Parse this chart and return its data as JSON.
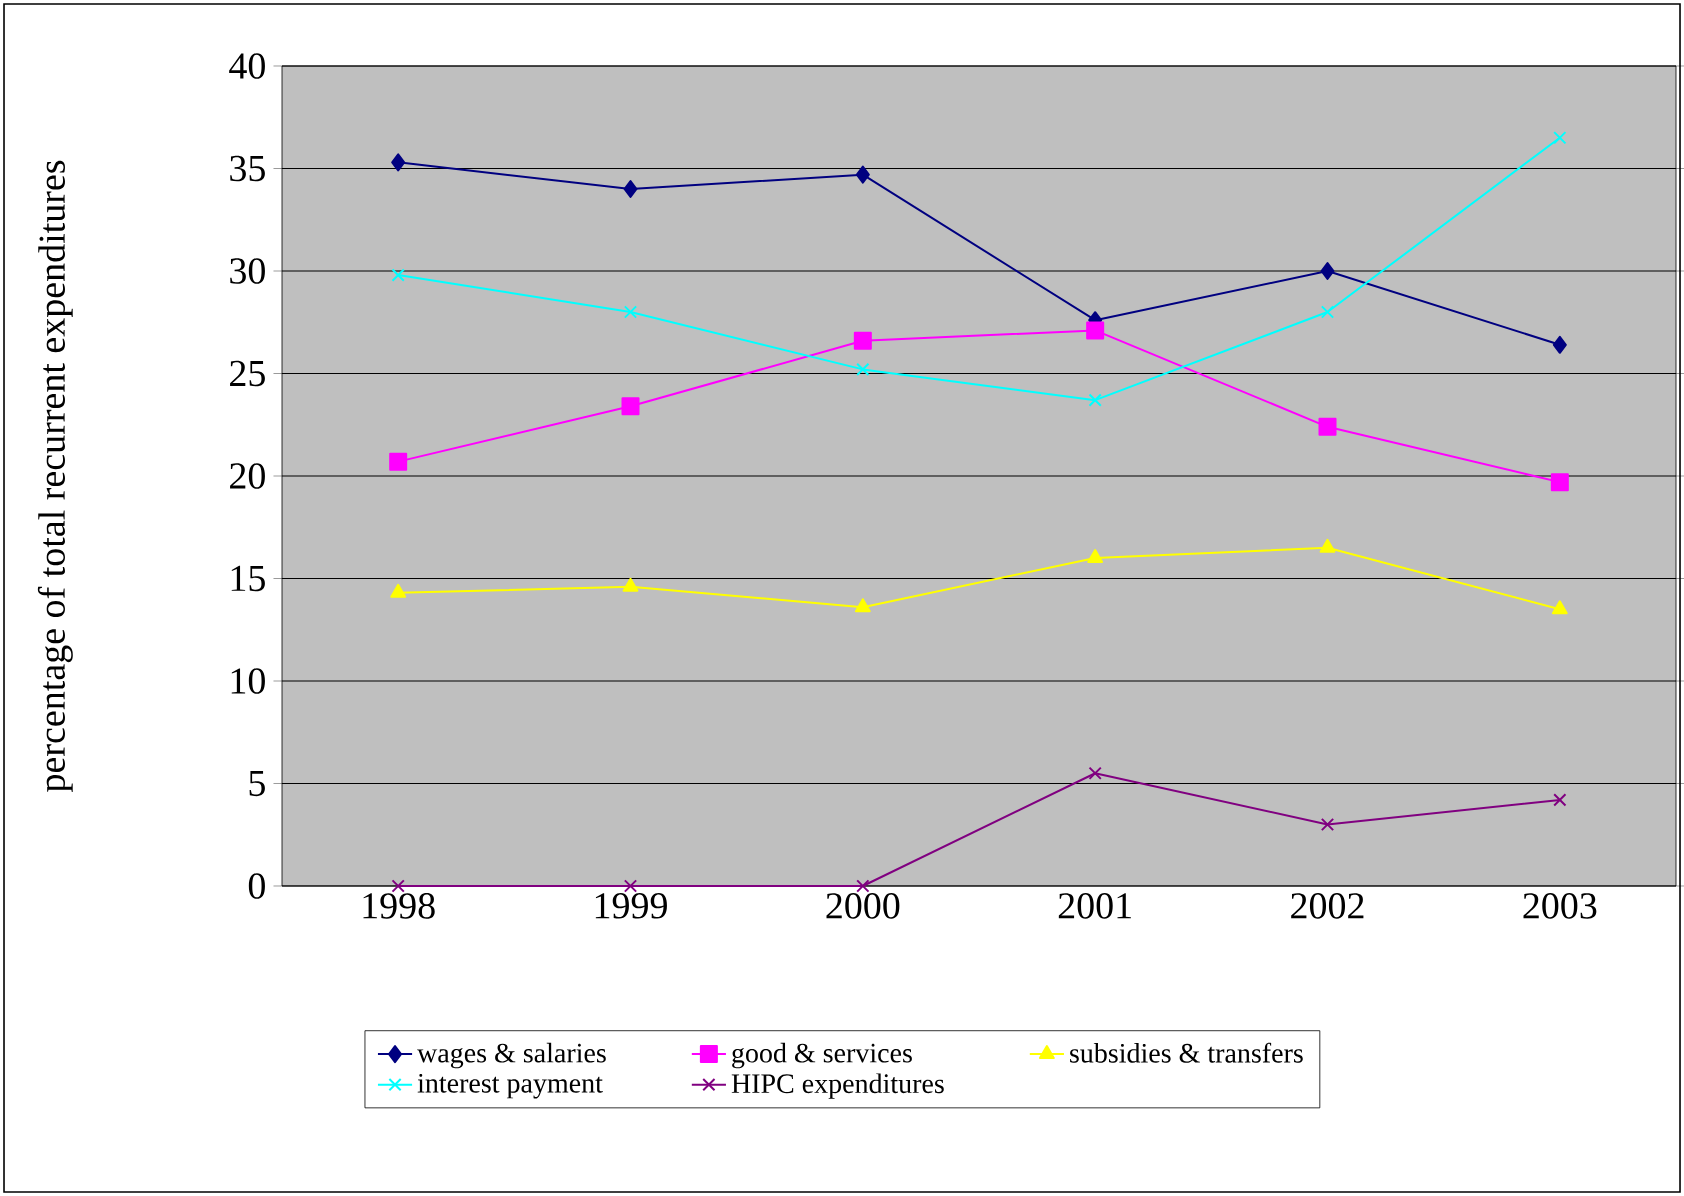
{
  "chart_data": {
    "type": "line",
    "ylabel": "percentage of total recurrent expenditures",
    "categories": [
      "1998",
      "1999",
      "2000",
      "2001",
      "2002",
      "2003"
    ],
    "ylim": [
      0,
      40
    ],
    "yticks": [
      0,
      5,
      10,
      15,
      20,
      25,
      30,
      35,
      40
    ],
    "grid": "y",
    "legend": "bottom",
    "series": [
      {
        "name": "wages & salaries",
        "color": "#000080",
        "marker": "diamond",
        "values": [
          35.3,
          34.0,
          34.7,
          27.6,
          30.0,
          26.4
        ]
      },
      {
        "name": "good & services",
        "color": "#ff00ff",
        "marker": "square",
        "values": [
          20.7,
          23.4,
          26.6,
          27.1,
          22.4,
          19.7
        ]
      },
      {
        "name": "subsidies & transfers",
        "color": "#ffff00",
        "marker": "triangle",
        "values": [
          14.3,
          14.6,
          13.6,
          16.0,
          16.5,
          13.5
        ]
      },
      {
        "name": "interest payment",
        "color": "#00ffff",
        "marker": "cross",
        "values": [
          29.8,
          28.0,
          25.2,
          23.7,
          28.0,
          36.5
        ]
      },
      {
        "name": "HIPC expenditures",
        "color": "#800080",
        "marker": "cross",
        "values": [
          0,
          0,
          0,
          5.5,
          3.0,
          4.2
        ]
      }
    ]
  }
}
